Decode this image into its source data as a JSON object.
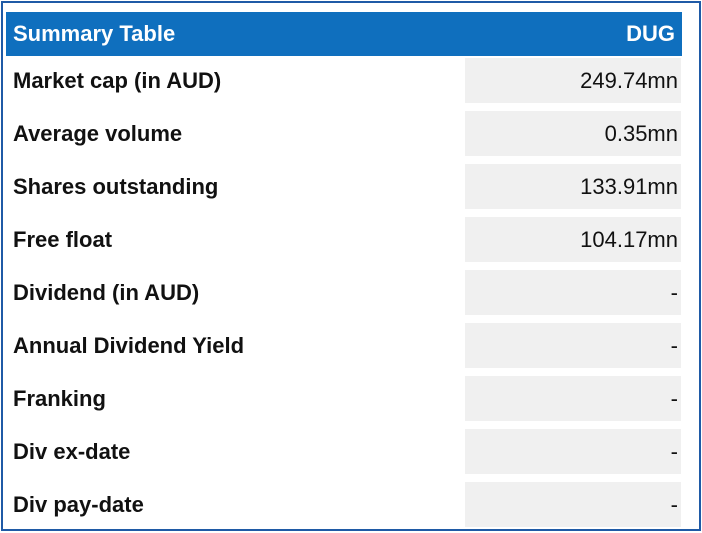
{
  "table": {
    "title": "Summary Table",
    "ticker": "DUG",
    "rows": [
      {
        "label": "Market cap (in AUD)",
        "value": "249.74mn"
      },
      {
        "label": "Average volume",
        "value": "0.35mn"
      },
      {
        "label": "Shares outstanding",
        "value": "133.91mn"
      },
      {
        "label": "Free float",
        "value": "104.17mn"
      },
      {
        "label": "Dividend (in AUD)",
        "value": "-"
      },
      {
        "label": "Annual Dividend Yield",
        "value": "-"
      },
      {
        "label": "Franking",
        "value": "-"
      },
      {
        "label": "Div ex-date",
        "value": "-"
      },
      {
        "label": "Div pay-date",
        "value": "-"
      }
    ]
  },
  "colors": {
    "header_bg": "#0f6fbe",
    "header_text": "#ffffff",
    "border": "#1f5aa6",
    "value_bg": "#f0f0f0"
  }
}
